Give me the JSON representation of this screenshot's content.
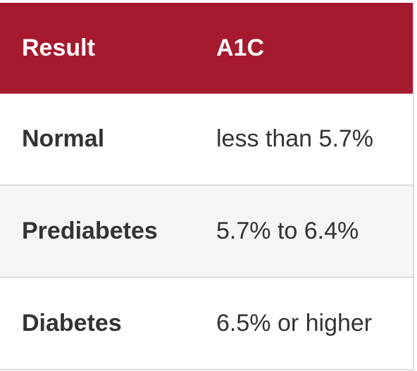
{
  "table": {
    "header": [
      "Result",
      "A1C"
    ],
    "rows": [
      [
        "Normal",
        "less than 5.7%"
      ],
      [
        "Prediabetes",
        "5.7% to 6.4%"
      ],
      [
        "Diabetes",
        "6.5% or higher"
      ]
    ]
  }
}
